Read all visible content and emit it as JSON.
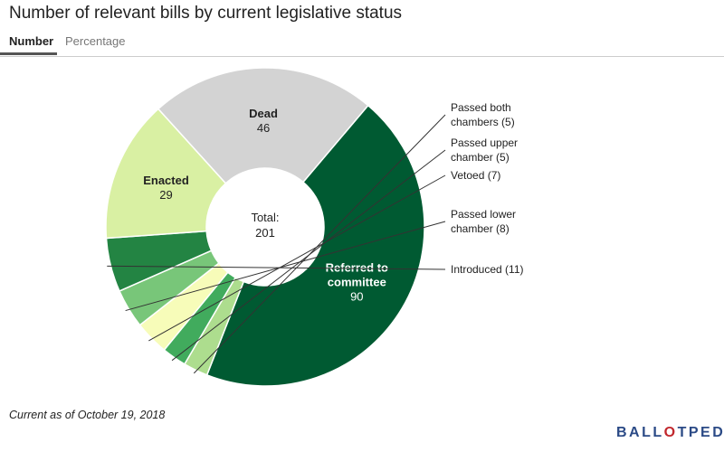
{
  "title": "Number of relevant bills by current legislative status",
  "tabs": [
    {
      "label": "Number",
      "active": true
    },
    {
      "label": "Percentage",
      "active": false
    }
  ],
  "chart_data": {
    "type": "pie",
    "donut": true,
    "center_label": {
      "line1": "Total:",
      "line2": "201"
    },
    "total": 201,
    "slices": [
      {
        "label": "Referred to committee",
        "value": 90,
        "color": "#005a32",
        "label_lines": [
          "Referred to",
          "committee"
        ],
        "value_text": "90",
        "label_position": "inside",
        "label_color": "#ffffff"
      },
      {
        "label": "Passed both chambers",
        "value": 5,
        "color": "#addd8e",
        "label_lines": [
          "Passed both",
          "chambers (5)"
        ],
        "label_position": "outside"
      },
      {
        "label": "Passed upper chamber",
        "value": 5,
        "color": "#41ab5d",
        "label_lines": [
          "Passed upper",
          "chamber (5)"
        ],
        "label_position": "outside"
      },
      {
        "label": "Vetoed",
        "value": 7,
        "color": "#f7fcb9",
        "label_lines": [
          "Vetoed (7)"
        ],
        "label_position": "outside"
      },
      {
        "label": "Passed lower chamber",
        "value": 8,
        "color": "#78c679",
        "label_lines": [
          "Passed lower",
          "chamber (8)"
        ],
        "label_position": "outside"
      },
      {
        "label": "Introduced",
        "value": 11,
        "color": "#238443",
        "label_lines": [
          "Introduced (11)"
        ],
        "label_position": "outside"
      },
      {
        "label": "Enacted",
        "value": 29,
        "color": "#d9f0a3",
        "label_lines": [
          "Enacted"
        ],
        "value_text": "29",
        "label_position": "inside",
        "label_color": "#222222"
      },
      {
        "label": "Dead",
        "value": 46,
        "color": "#d3d3d3",
        "label_lines": [
          "Dead"
        ],
        "value_text": "46",
        "label_position": "inside",
        "label_color": "#222222"
      }
    ]
  },
  "footnote": "Current as of October 19, 2018",
  "brand": {
    "part1": "BALL",
    "part2": "O",
    "part3": "TPEDIA"
  }
}
